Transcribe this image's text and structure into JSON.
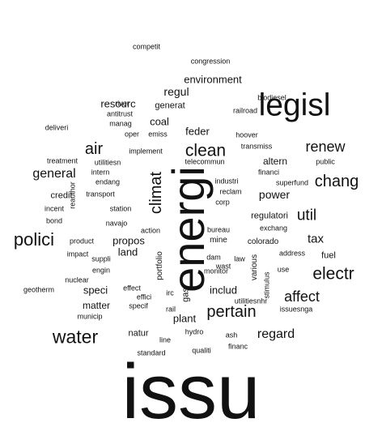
{
  "chart_data": {
    "type": "wordcloud",
    "words": [
      {
        "text": "issu",
        "weight": 100
      },
      {
        "text": "energi",
        "weight": 60
      },
      {
        "text": "legisl",
        "weight": 42
      },
      {
        "text": "water",
        "weight": 24
      },
      {
        "text": "polici",
        "weight": 23
      },
      {
        "text": "clean",
        "weight": 22
      },
      {
        "text": "electr",
        "weight": 22
      },
      {
        "text": "pertain",
        "weight": 21
      },
      {
        "text": "air",
        "weight": 20
      },
      {
        "text": "chang",
        "weight": 20
      },
      {
        "text": "climat",
        "weight": 20
      },
      {
        "text": "util",
        "weight": 19
      },
      {
        "text": "renew",
        "weight": 18
      },
      {
        "text": "affect",
        "weight": 18
      },
      {
        "text": "general",
        "weight": 16
      },
      {
        "text": "regard",
        "weight": 16
      },
      {
        "text": "tax",
        "weight": 15
      },
      {
        "text": "power",
        "weight": 14
      },
      {
        "text": "regul",
        "weight": 14
      },
      {
        "text": "resourc",
        "weight": 13
      },
      {
        "text": "coal",
        "weight": 13
      },
      {
        "text": "environment",
        "weight": 13
      },
      {
        "text": "feder",
        "weight": 13
      },
      {
        "text": "speci",
        "weight": 12
      },
      {
        "text": "includ",
        "weight": 12
      },
      {
        "text": "land",
        "weight": 12
      },
      {
        "text": "plant",
        "weight": 12
      },
      {
        "text": "propos",
        "weight": 12
      },
      {
        "text": "matter",
        "weight": 11
      },
      {
        "text": "altern",
        "weight": 11
      },
      {
        "text": "regulatori",
        "weight": 10
      },
      {
        "text": "credit",
        "weight": 10
      },
      {
        "text": "fuel",
        "weight": 10
      },
      {
        "text": "natur",
        "weight": 10
      },
      {
        "text": "generat",
        "weight": 10
      },
      {
        "text": "gas",
        "weight": 10
      },
      {
        "text": "portfolio",
        "weight": 9
      },
      {
        "text": "mine",
        "weight": 9
      },
      {
        "text": "colorado",
        "weight": 9
      },
      {
        "text": "various",
        "weight": 9
      },
      {
        "text": "competit",
        "weight": 8
      },
      {
        "text": "congression",
        "weight": 8
      },
      {
        "text": "river",
        "weight": 8
      },
      {
        "text": "antitrust",
        "weight": 8
      },
      {
        "text": "manag",
        "weight": 8
      },
      {
        "text": "railroad",
        "weight": 8
      },
      {
        "text": "deliveri",
        "weight": 8
      },
      {
        "text": "oper",
        "weight": 8
      },
      {
        "text": "emiss",
        "weight": 8
      },
      {
        "text": "hoover",
        "weight": 8
      },
      {
        "text": "transmiss",
        "weight": 8
      },
      {
        "text": "implement",
        "weight": 8
      },
      {
        "text": "public",
        "weight": 8
      },
      {
        "text": "treatment",
        "weight": 8
      },
      {
        "text": "financi",
        "weight": 8
      },
      {
        "text": "industri",
        "weight": 8
      },
      {
        "text": "endang",
        "weight": 8
      },
      {
        "text": "superfund",
        "weight": 8
      },
      {
        "text": "telecommun",
        "weight": 8
      },
      {
        "text": "utilitiesn",
        "weight": 8
      },
      {
        "text": "intern",
        "weight": 8
      },
      {
        "text": "transport",
        "weight": 8
      },
      {
        "text": "reclam",
        "weight": 8
      },
      {
        "text": "incent",
        "weight": 8
      },
      {
        "text": "station",
        "weight": 8
      },
      {
        "text": "bond",
        "weight": 8
      },
      {
        "text": "navajo",
        "weight": 8
      },
      {
        "text": "reauthor",
        "weight": 8
      },
      {
        "text": "action",
        "weight": 8
      },
      {
        "text": "corp",
        "weight": 8
      },
      {
        "text": "bureau",
        "weight": 8
      },
      {
        "text": "exchang",
        "weight": 8
      },
      {
        "text": "product",
        "weight": 8
      },
      {
        "text": "suppli",
        "weight": 8
      },
      {
        "text": "dam",
        "weight": 8
      },
      {
        "text": "law",
        "weight": 8
      },
      {
        "text": "address",
        "weight": 8
      },
      {
        "text": "impact",
        "weight": 8
      },
      {
        "text": "monitor",
        "weight": 8
      },
      {
        "text": "wast",
        "weight": 8
      },
      {
        "text": "use",
        "weight": 8
      },
      {
        "text": "engin",
        "weight": 8
      },
      {
        "text": "nuclear",
        "weight": 8
      },
      {
        "text": "effici",
        "weight": 8
      },
      {
        "text": "geotherm",
        "weight": 8
      },
      {
        "text": "effect",
        "weight": 8
      },
      {
        "text": "irc",
        "weight": 8
      },
      {
        "text": "stimulus",
        "weight": 8
      },
      {
        "text": "municip",
        "weight": 8
      },
      {
        "text": "specif",
        "weight": 8
      },
      {
        "text": "rail",
        "weight": 8
      },
      {
        "text": "utilitiesnhr",
        "weight": 8
      },
      {
        "text": "issuesnga",
        "weight": 8
      },
      {
        "text": "hydro",
        "weight": 8
      },
      {
        "text": "line",
        "weight": 8
      },
      {
        "text": "ash",
        "weight": 8
      },
      {
        "text": "standard",
        "weight": 8
      },
      {
        "text": "qualiti",
        "weight": 8
      },
      {
        "text": "financ",
        "weight": 8
      },
      {
        "text": "biodiesel",
        "weight": 8
      }
    ]
  }
}
